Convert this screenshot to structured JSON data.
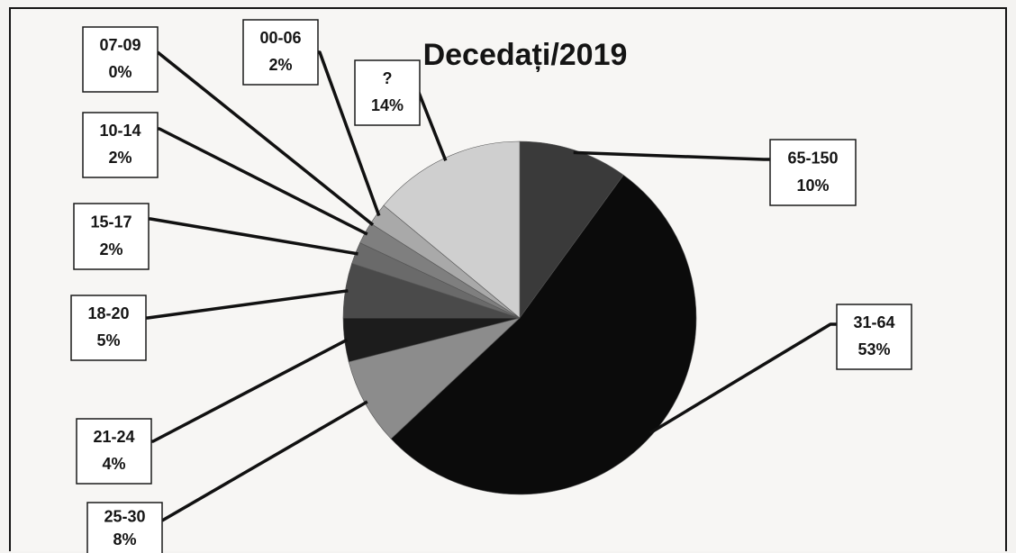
{
  "chart_data": {
    "type": "pie",
    "title": "Decedați/2019",
    "start_angle_deg": 0,
    "direction": "clockwise",
    "slices": [
      {
        "label": "65-150",
        "value": 10,
        "display": "10%",
        "color": "#3a3a3a"
      },
      {
        "label": "31-64",
        "value": 53,
        "display": "53%",
        "color": "#0b0b0b"
      },
      {
        "label": "25-30",
        "value": 8,
        "display": "8%",
        "color": "#8c8c8c"
      },
      {
        "label": "21-24",
        "value": 4,
        "display": "4%",
        "color": "#1c1c1c"
      },
      {
        "label": "18-20",
        "value": 5,
        "display": "5%",
        "color": "#4a4a4a"
      },
      {
        "label": "15-17",
        "value": 2,
        "display": "2%",
        "color": "#6a6a6a"
      },
      {
        "label": "10-14",
        "value": 2,
        "display": "2%",
        "color": "#7f7f7f"
      },
      {
        "label": "07-09",
        "value": 0,
        "display": "0%",
        "color": "#9a9a9a"
      },
      {
        "label": "00-06",
        "value": 2,
        "display": "2%",
        "color": "#a9a9a9"
      },
      {
        "label": "?",
        "value": 14,
        "display": "14%",
        "color": "#cfcfcf"
      }
    ],
    "legend": "none",
    "data_labels": "outside with leader lines"
  }
}
